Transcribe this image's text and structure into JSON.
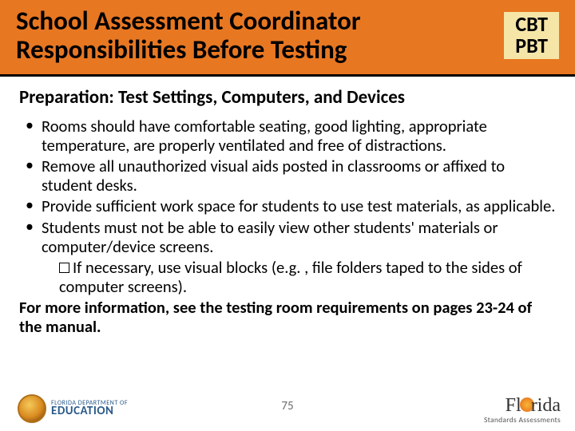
{
  "header": {
    "title": "School Assessment Coordinator Responsibilities Before Testing",
    "badge_line1": "CBT",
    "badge_line2": "PBT",
    "bg_color": "#e87722",
    "badge_bg": "#f5e6a8"
  },
  "subtitle": "Preparation:  Test Settings, Computers, and Devices",
  "bullets": [
    "Rooms should have comfortable seating, good lighting, appropriate temperature, are properly ventilated and free of distractions.",
    "Remove all unauthorized visual aids posted in classrooms or affixed to student desks.",
    "Provide sufficient work space for students to use test materials, as applicable.",
    "Students must not be able to easily view other students' materials or computer/device screens."
  ],
  "sub_bullet": "If necessary, use visual blocks (e.g. , file folders taped to the sides of computer screens).",
  "more_info": "For more information, see the testing room requirements on pages 23-24 of the manual.",
  "footer": {
    "page_number": "75",
    "left_logo_small": "FLORIDA DEPARTMENT OF",
    "left_logo_big": "EDUCATION",
    "right_logo_text": "Florida",
    "right_logo_sub": "Standards Assessments"
  }
}
